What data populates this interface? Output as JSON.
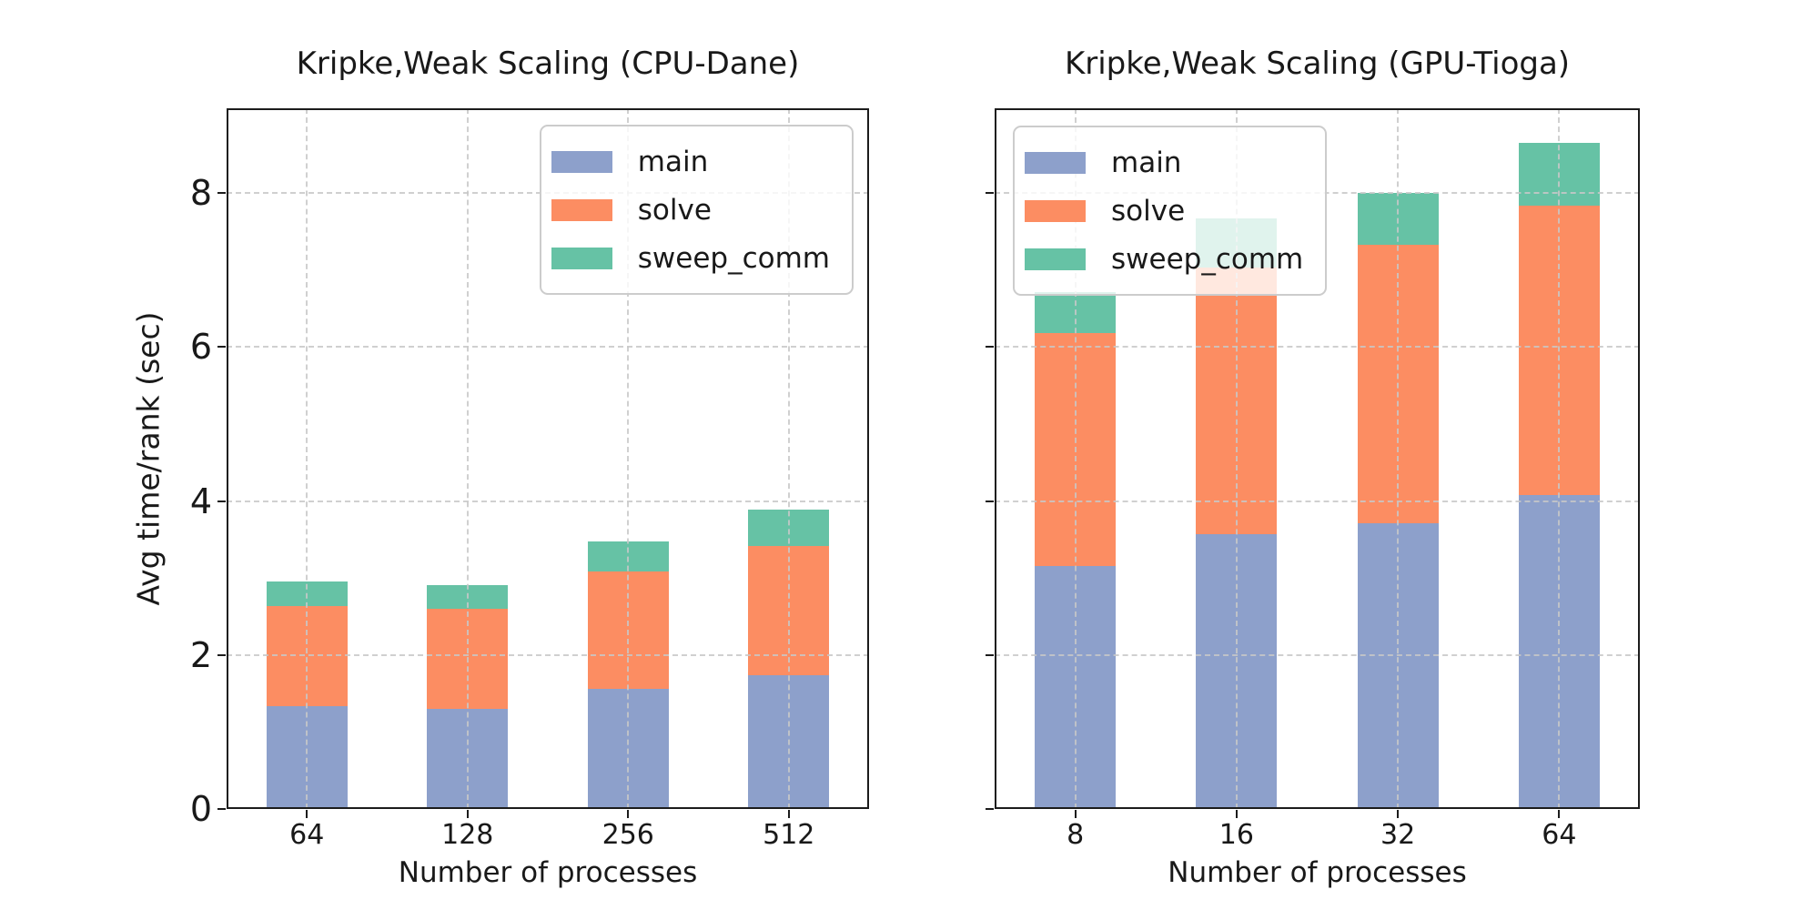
{
  "figure": {
    "background": "#ffffff",
    "series_colors": {
      "main": "#8da0cb",
      "solve": "#fc8d62",
      "sweep_comm": "#66c2a5"
    },
    "legend_labels": [
      "main",
      "solve",
      "sweep_comm"
    ]
  },
  "chart_data": [
    {
      "type": "bar",
      "stacked": true,
      "title": "Kripke,Weak Scaling (CPU-Dane)",
      "xlabel": "Number of processes",
      "ylabel": "Avg time/rank (sec)",
      "categories": [
        "64",
        "128",
        "256",
        "512"
      ],
      "series": [
        {
          "name": "main",
          "color": "#8da0cb",
          "values": [
            1.34,
            1.3,
            1.56,
            1.74
          ]
        },
        {
          "name": "solve",
          "color": "#fc8d62",
          "values": [
            1.3,
            1.3,
            1.52,
            1.68
          ]
        },
        {
          "name": "sweep_comm",
          "color": "#66c2a5",
          "values": [
            0.32,
            0.31,
            0.4,
            0.47
          ]
        }
      ],
      "stack_totals": [
        2.96,
        2.91,
        3.48,
        3.89
      ],
      "ylim": [
        0,
        9.1
      ],
      "yticks": [
        0,
        2,
        4,
        6,
        8
      ],
      "ytick_labels_visible": true,
      "grid": true,
      "legend_position": "upper-right"
    },
    {
      "type": "bar",
      "stacked": true,
      "title": "Kripke,Weak Scaling (GPU-Tioga)",
      "xlabel": "Number of processes",
      "ylabel": "",
      "categories": [
        "8",
        "16",
        "32",
        "64"
      ],
      "series": [
        {
          "name": "main",
          "color": "#8da0cb",
          "values": [
            3.15,
            3.57,
            3.71,
            4.08
          ]
        },
        {
          "name": "solve",
          "color": "#fc8d62",
          "values": [
            3.03,
            3.46,
            3.62,
            3.75
          ]
        },
        {
          "name": "sweep_comm",
          "color": "#66c2a5",
          "values": [
            0.53,
            0.64,
            0.67,
            0.82
          ]
        }
      ],
      "stack_totals": [
        6.71,
        7.67,
        8.0,
        8.65
      ],
      "ylim": [
        0,
        9.1
      ],
      "yticks": [
        0,
        2,
        4,
        6,
        8
      ],
      "ytick_labels_visible": false,
      "grid": true,
      "legend_position": "upper-left"
    }
  ]
}
